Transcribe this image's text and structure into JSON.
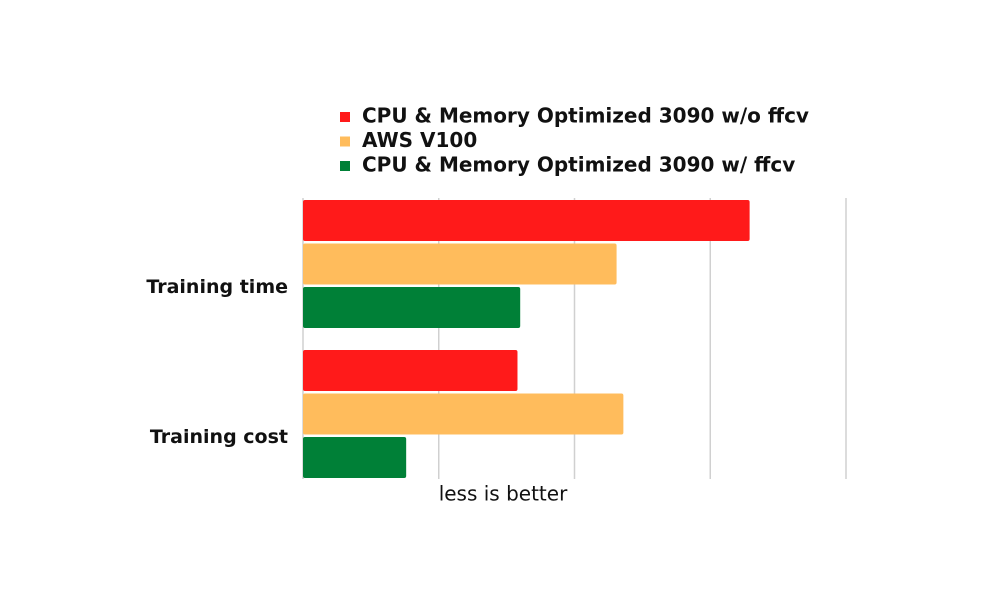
{
  "chart_data": {
    "type": "hbar",
    "categories": [
      "Training time",
      "Training cost"
    ],
    "series": [
      {
        "name": "CPU & Memory Optimized 3090 w/o ffcv",
        "color": "#ff1a1a",
        "values": [
          3.29,
          1.58
        ]
      },
      {
        "name": "AWS V100",
        "color": "#ffbc5c",
        "values": [
          2.31,
          2.36
        ]
      },
      {
        "name": "CPU & Memory Optimized 3090 w/ ffcv",
        "color": "#008037",
        "values": [
          1.6,
          0.76
        ]
      }
    ],
    "xlabel": "less is better",
    "xlim": [
      0,
      4
    ],
    "xticks": [
      1,
      2,
      3,
      4
    ],
    "tick_labels": false,
    "grid": true,
    "legend": "top"
  }
}
